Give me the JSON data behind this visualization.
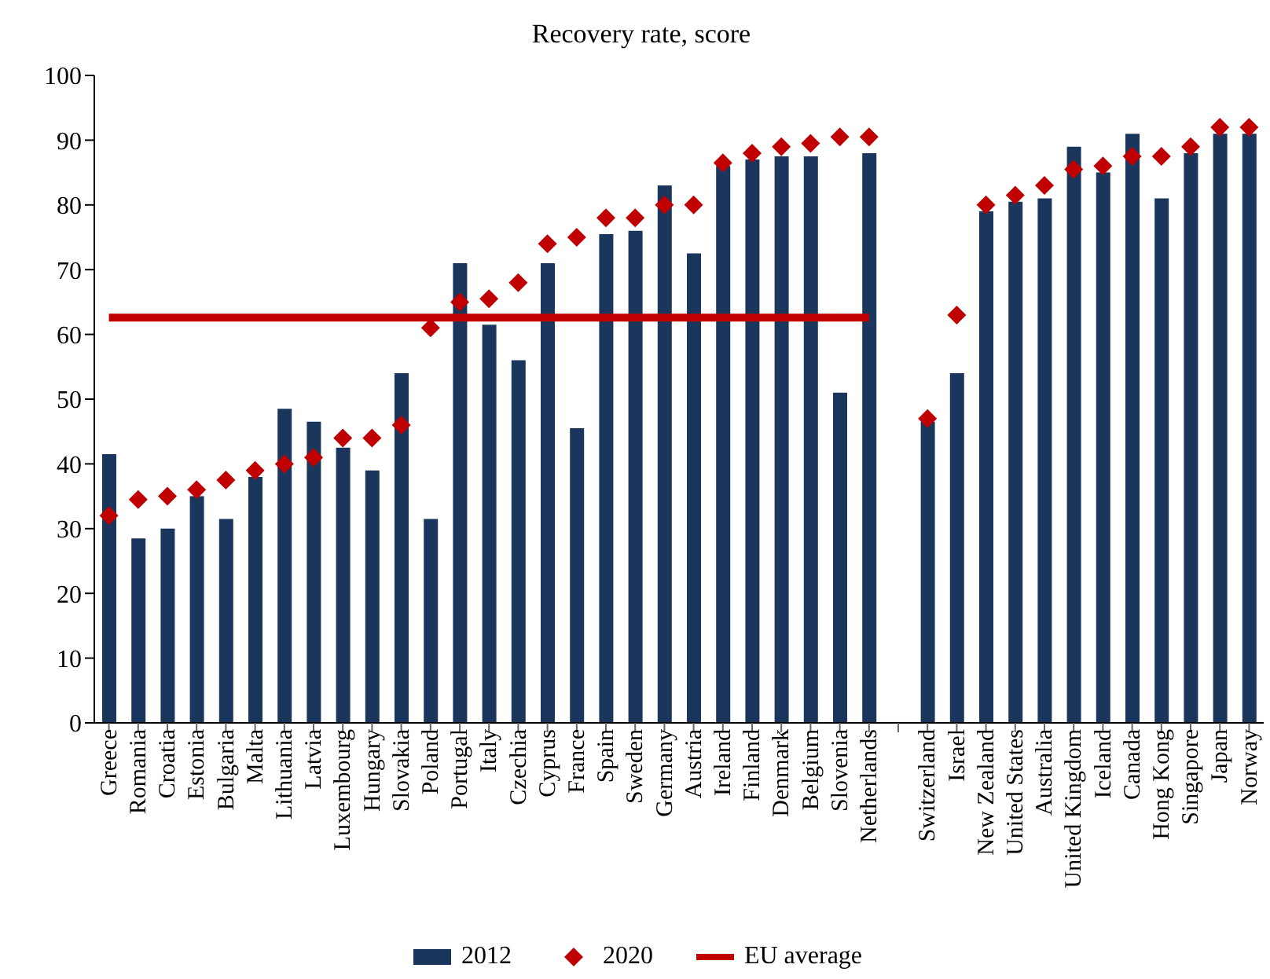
{
  "chart_data": {
    "type": "bar",
    "title": "Recovery rate, score",
    "categories": [
      "Greece",
      "Romania",
      "Croatia",
      "Estonia",
      "Bulgaria",
      "Malta",
      "Lithuania",
      "Latvia",
      "Luxembourg",
      "Hungary",
      "Slovakia",
      "Poland",
      "Portugal",
      "Italy",
      "Czechia",
      "Cyprus",
      "France",
      "Spain",
      "Sweden",
      "Germany",
      "Austria",
      "Ireland",
      "Finland",
      "Denmark",
      "Belgium",
      "Slovenia",
      "Netherlands",
      null,
      "Switzerland",
      "Israel",
      "New Zealand",
      "United States",
      "Australia",
      "United Kingdom",
      "Iceland",
      "Canada",
      "Hong Kong",
      "Singapore",
      "Japan",
      "Norway"
    ],
    "series": [
      {
        "name": "2012",
        "color": "#1b365d",
        "values": [
          41.5,
          28.5,
          30,
          35,
          31.5,
          38,
          48.5,
          46.5,
          42.5,
          39,
          54,
          31.5,
          71,
          61.5,
          56,
          71,
          45.5,
          75.5,
          76,
          83,
          72.5,
          86,
          87,
          87.5,
          87.5,
          51,
          88,
          null,
          46.5,
          54,
          79,
          80.5,
          81,
          89,
          85,
          91,
          81,
          88,
          91,
          91
        ]
      },
      {
        "name": "2020",
        "type": "scatter",
        "marker": "diamond",
        "color": "#c00000",
        "values": [
          32,
          34.5,
          35,
          36,
          37.5,
          39,
          40,
          41,
          44,
          44,
          46,
          61,
          65,
          65.5,
          68,
          74,
          75,
          78,
          78,
          80,
          80,
          86.5,
          88,
          89,
          89.5,
          90.5,
          90.5,
          null,
          47,
          63,
          80,
          81.5,
          83,
          85.5,
          86,
          87.5,
          87.5,
          89,
          92,
          92
        ]
      },
      {
        "name": "EU average",
        "type": "line",
        "marker": "none",
        "color": "#c00000",
        "values": [
          62.6,
          62.6,
          62.6,
          62.6,
          62.6,
          62.6,
          62.6,
          62.6,
          62.6,
          62.6,
          62.6,
          62.6,
          62.6,
          62.6,
          62.6,
          62.6,
          62.6,
          62.6,
          62.6,
          62.6,
          62.6,
          62.6,
          62.6,
          62.6,
          62.6,
          62.6,
          62.6,
          null,
          null,
          null,
          null,
          null,
          null,
          null,
          null,
          null,
          null,
          null,
          null,
          null
        ]
      }
    ],
    "ylim": [
      0,
      100
    ],
    "yticks": [
      0,
      10,
      20,
      30,
      40,
      50,
      60,
      70,
      80,
      90,
      100
    ],
    "grid": false,
    "legend": "bottom"
  }
}
